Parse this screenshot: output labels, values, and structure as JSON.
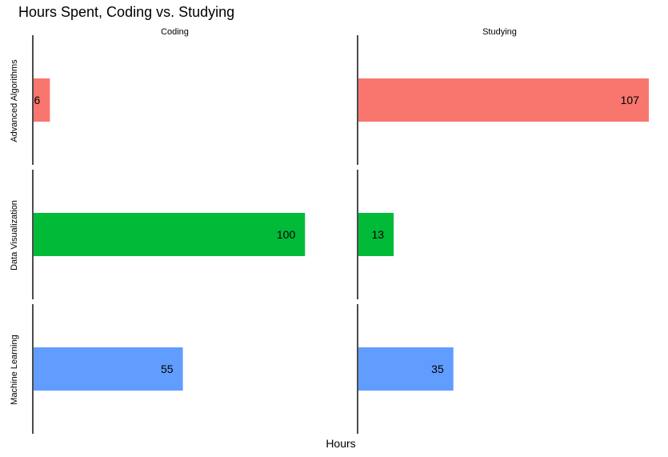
{
  "chart_data": {
    "type": "bar",
    "orientation": "horizontal",
    "title": "Hours Spent, Coding vs. Studying",
    "xlabel": "Hours",
    "ylabel": "",
    "facet_columns": [
      "Coding",
      "Studying"
    ],
    "facet_rows": [
      "Advanced Algorithms",
      "Data Visualization",
      "Machine Learning"
    ],
    "row_colors": [
      "#F8766D",
      "#00BA38",
      "#619CFF"
    ],
    "values": {
      "Coding": [
        6,
        100,
        55
      ],
      "Studying": [
        107,
        13,
        35
      ]
    },
    "xlim": [
      0,
      107
    ],
    "data_labels": true,
    "grid": false,
    "legend": "none"
  }
}
